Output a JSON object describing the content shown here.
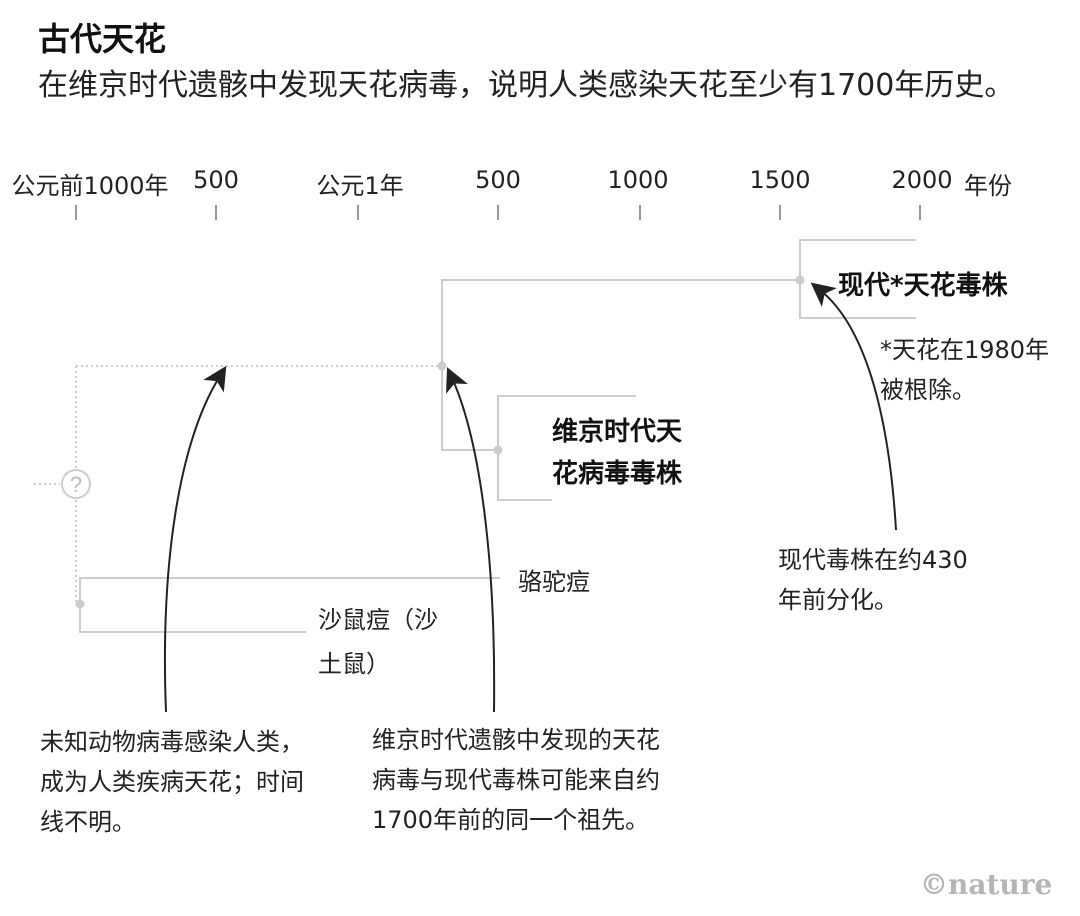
{
  "title": "古代天花",
  "subtitle": "在维京时代遗骸中发现天花病毒，说明人类感染天花至少有1700年历史。",
  "axis": {
    "ticks": [
      "公元前1000年",
      "500",
      "公元1年",
      "500",
      "1000",
      "1500",
      "2000"
    ],
    "unit": "年份"
  },
  "clades": {
    "modern": "现代*天花毒株",
    "modern_note": "*天花在1980年被根除。",
    "viking_line1": "维京时代天",
    "viking_line2": "花病毒毒株",
    "camelpox": "骆驼痘",
    "taterapox_line1": "沙鼠痘（沙",
    "taterapox_line2": "土鼠）",
    "unknown_marker": "?"
  },
  "notes": {
    "modern_split": "现代毒株在约430年前分化。",
    "animal_origin": "未知动物病毒感染人类，成为人类疾病天花；时间线不明。",
    "common_ancestor": "维京时代遗骸中发现的天花病毒与现代毒株可能来自约1700年前的同一个祖先。"
  },
  "logo": "©nature"
}
